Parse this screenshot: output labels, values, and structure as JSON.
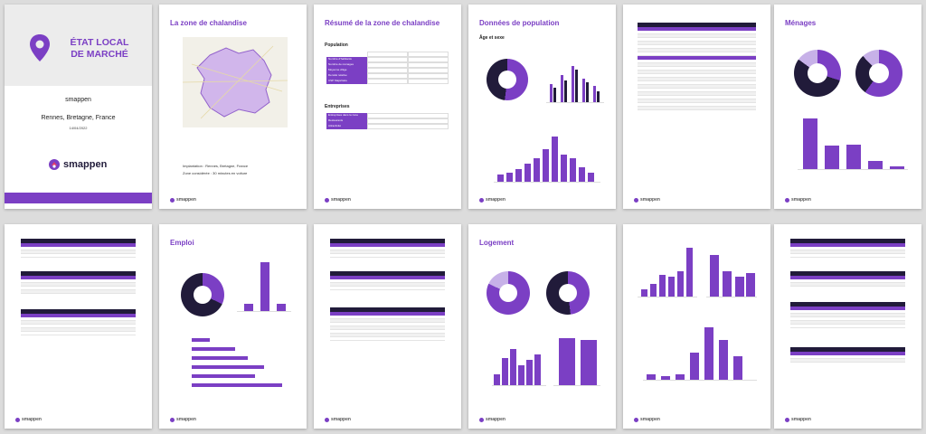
{
  "cover": {
    "title_line1": "ÉTAT LOCAL",
    "title_line2": "DE MARCHÉ",
    "brand": "smappen",
    "location": "Rennes, Bretagne, France",
    "date": "14/04/2022",
    "logo_text": "smappen",
    "pin_icon": "map-pin-icon",
    "accent": "#7b3fc4",
    "dark": "#211b3a"
  },
  "footer": {
    "logo_text": "smappen"
  },
  "pages": {
    "p2": {
      "title": "La zone de chalandise",
      "caption1": "Implantation : Rennes, Bretagne, France",
      "caption2": "Zone considérée : 30 minutes en voiture"
    },
    "p3": {
      "title": "Résumé de la zone de chalandise",
      "population_heading": "Population",
      "population_rows": [
        "Nombre d'habitants",
        "Nombre de ménages",
        "Moyenne d'âge",
        "Densité relative",
        "CSP Majoritaire"
      ],
      "business_heading": "Entreprises",
      "business_rows": [
        "Entreprises dans la zone",
        "Restaurants",
        "Attractivité"
      ]
    },
    "p4": {
      "title": "Données de population",
      "subheading": "Âge et sexe"
    },
    "p6": {
      "title": "Ménages"
    },
    "p8": {
      "title": "Emploi"
    },
    "p10": {
      "title": "Logement"
    }
  }
}
